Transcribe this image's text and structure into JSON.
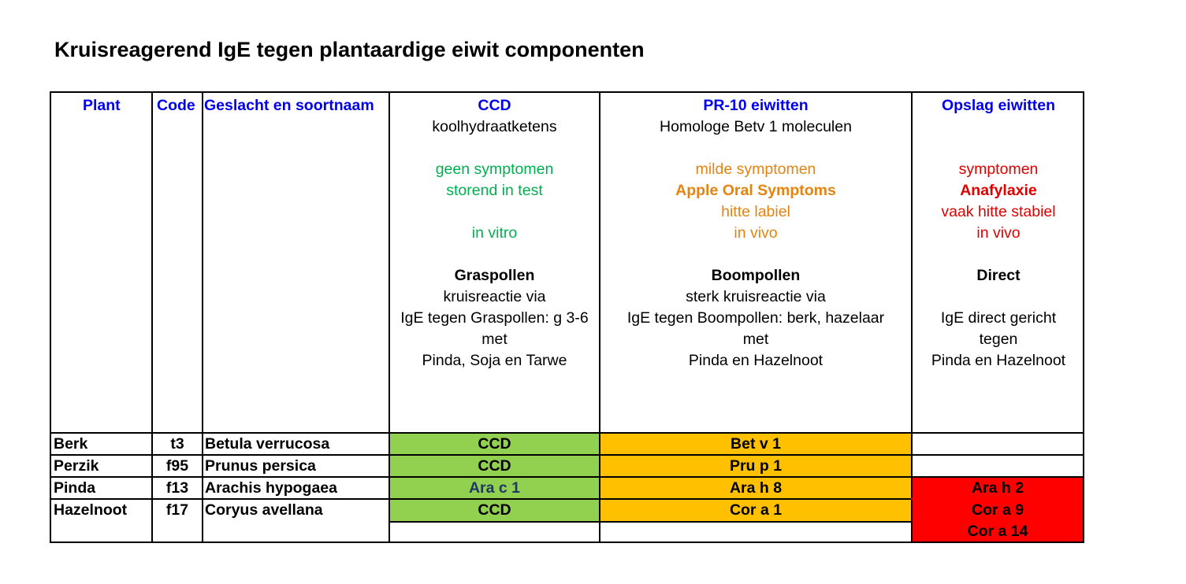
{
  "title": "Kruisreagerend IgE tegen  plantaardige eiwit componenten",
  "headers": {
    "plant": "Plant",
    "code": "Code",
    "genus": "Geslacht en soortnaam",
    "ccd": {
      "label": "CCD",
      "lines": [
        {
          "text": "koolhydraatketens",
          "style": "normal"
        },
        {
          "text": "",
          "style": "empty"
        },
        {
          "text": "geen symptomen",
          "style": "green"
        },
        {
          "text": "storend in test",
          "style": "green"
        },
        {
          "text": "",
          "style": "empty"
        },
        {
          "text": "in vitro",
          "style": "green"
        },
        {
          "text": "",
          "style": "empty"
        },
        {
          "text": "Graspollen",
          "style": "bold"
        },
        {
          "text": "kruisreactie via",
          "style": "normal"
        },
        {
          "text": "IgE tegen Graspollen: g 3-6",
          "style": "normal"
        },
        {
          "text": "met",
          "style": "normal"
        },
        {
          "text": "Pinda, Soja en Tarwe",
          "style": "normal"
        }
      ]
    },
    "pr10": {
      "label": "PR-10 eiwitten",
      "lines": [
        {
          "text": "Homologe Betv 1 moleculen",
          "style": "normal"
        },
        {
          "text": "",
          "style": "empty"
        },
        {
          "text": "milde  symptomen",
          "style": "orange"
        },
        {
          "text": "Apple Oral Symptoms",
          "style": "orange bold"
        },
        {
          "text": "hitte labiel",
          "style": "orange"
        },
        {
          "text": "in vivo",
          "style": "orange"
        },
        {
          "text": "",
          "style": "empty"
        },
        {
          "text": "Boompollen",
          "style": "bold"
        },
        {
          "text": "sterk kruisreactie via",
          "style": "normal"
        },
        {
          "text": "IgE tegen Boompollen: berk, hazelaar",
          "style": "normal"
        },
        {
          "text": "met",
          "style": "normal"
        },
        {
          "text": "Pinda en Hazelnoot",
          "style": "normal"
        }
      ]
    },
    "storage": {
      "label": "Opslag eiwitten",
      "lines": [
        {
          "text": "",
          "style": "empty"
        },
        {
          "text": "",
          "style": "empty"
        },
        {
          "text": "symptomen",
          "style": "red"
        },
        {
          "text": "Anafylaxie",
          "style": "red bold"
        },
        {
          "text": "vaak hitte stabiel",
          "style": "red"
        },
        {
          "text": "in vivo",
          "style": "red"
        },
        {
          "text": "",
          "style": "empty"
        },
        {
          "text": "Direct",
          "style": "bold"
        },
        {
          "text": "",
          "style": "empty"
        },
        {
          "text": "IgE direct gericht",
          "style": "normal"
        },
        {
          "text": "tegen",
          "style": "normal"
        },
        {
          "text": "Pinda en Hazelnoot",
          "style": "normal"
        }
      ]
    }
  },
  "rows": [
    {
      "plant": "Berk",
      "code": "t3",
      "genus": "Betula verrucosa",
      "ccd": "CCD",
      "pr10": "Bet v 1",
      "storage": []
    },
    {
      "plant": "Perzik",
      "code": "f95",
      "genus": "Prunus persica",
      "ccd": "CCD",
      "pr10": "Pru p 1",
      "storage": []
    },
    {
      "plant": "Pinda",
      "code": "f13",
      "genus": "Arachis hypogaea",
      "ccd": "Ara c 1",
      "pr10": "Ara h 8",
      "storage": [
        "Ara h 2"
      ]
    },
    {
      "plant": "Hazelnoot",
      "code": "f17",
      "genus": "Coryus avellana",
      "ccd": "CCD",
      "pr10": "Cor a 1",
      "storage": [
        "Cor a 9",
        "Cor a 14"
      ]
    }
  ],
  "colors": {
    "header_label": "#0000ee",
    "ccd_fill": "#92d050",
    "pr10_fill": "#ffc000",
    "storage_fill": "#ff0000",
    "mild_text": "#e38412",
    "severe_text": "#e00000",
    "nosymptom_text": "#00b050"
  }
}
